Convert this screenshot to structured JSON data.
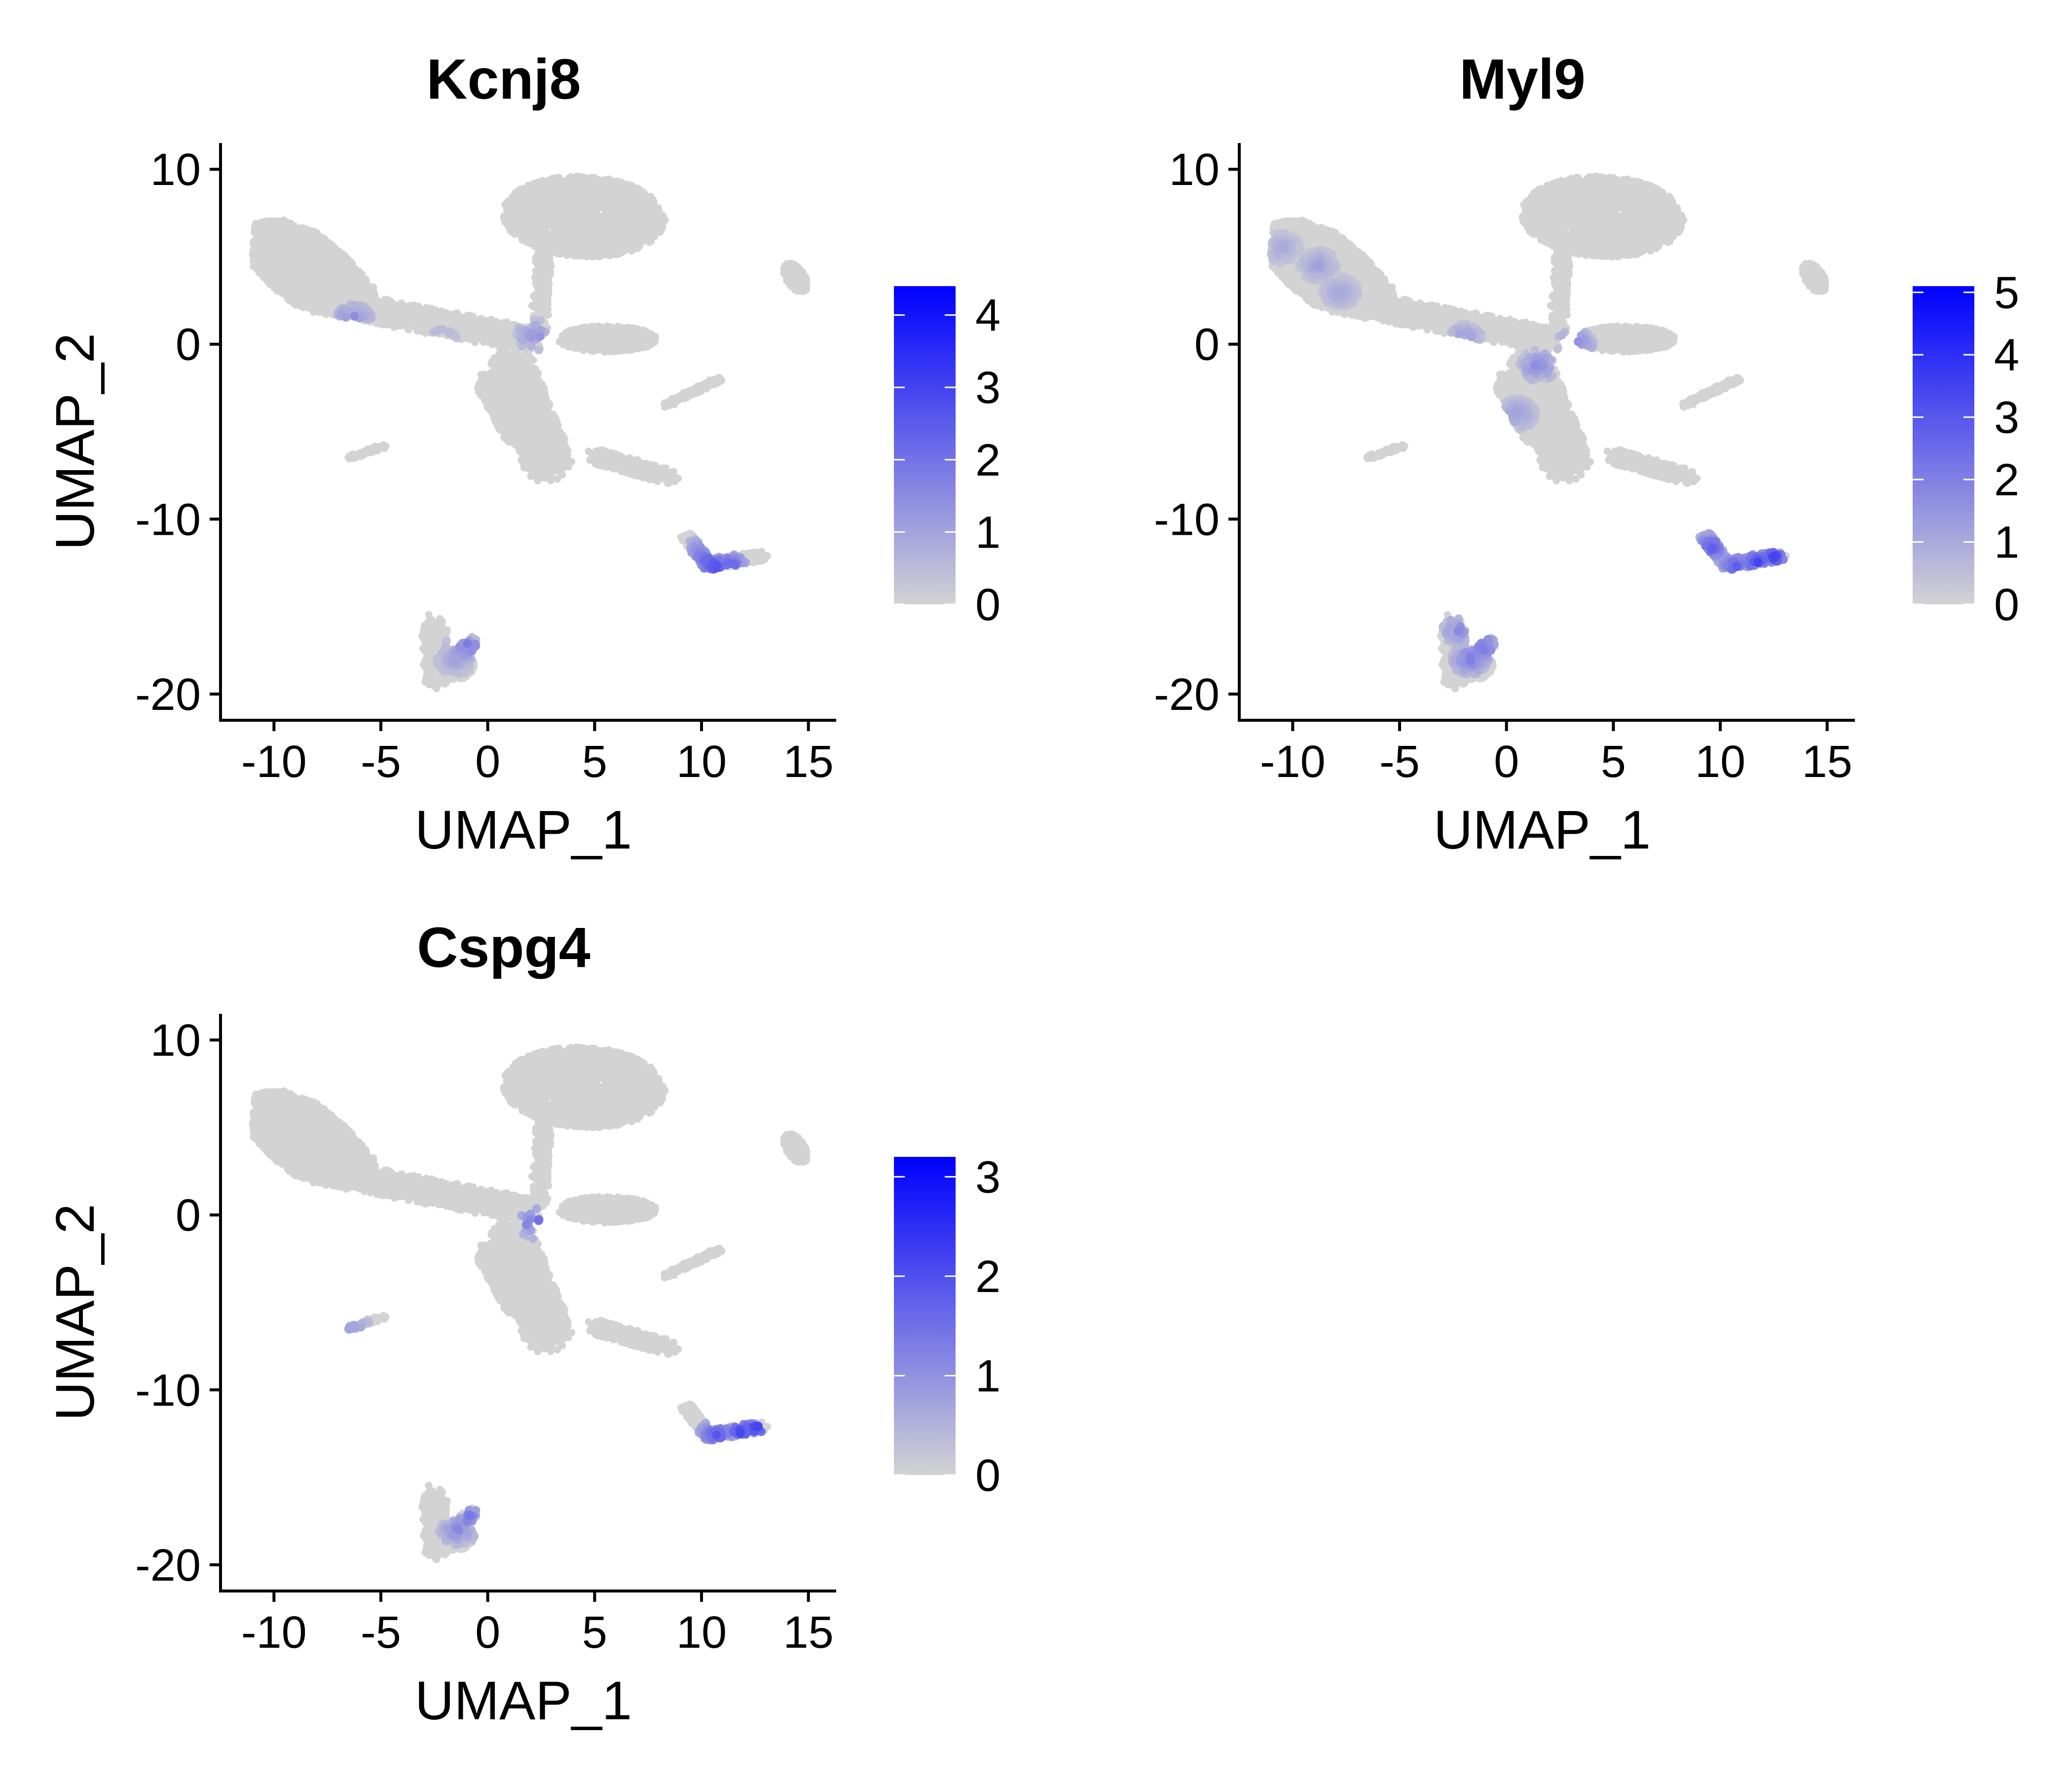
{
  "chart_data": [
    {
      "type": "scatter",
      "title": "Kcnj8",
      "xlabel": "UMAP_1",
      "ylabel": "UMAP_2",
      "xlim": [
        -12.5,
        16.3
      ],
      "ylim": [
        -21.5,
        11.5
      ],
      "xticks": [
        -10,
        -5,
        0,
        5,
        10,
        15
      ],
      "xtick_labels": [
        "-10",
        "-5",
        "0",
        "5",
        "10",
        "15"
      ],
      "yticks": [
        -20,
        -10,
        0,
        10
      ],
      "ytick_labels": [
        "-20",
        "-10",
        "0",
        "10"
      ],
      "colorbar": {
        "min": 0,
        "max": 4.4,
        "low_color": "#d3d3d3",
        "high_color": "#0000ff",
        "ticks": [
          0,
          1,
          2,
          3,
          4
        ],
        "tick_labels": [
          "0",
          "1",
          "2",
          "3",
          "4"
        ]
      },
      "expression_hotspots": [
        {
          "x": 10.6,
          "y": -12.7,
          "value": 3.0
        },
        {
          "x": 10.2,
          "y": -12.4,
          "value": 2.5
        },
        {
          "x": 11.3,
          "y": -12.9,
          "value": 3.4
        },
        {
          "x": 9.9,
          "y": -12.0,
          "value": 2.0
        },
        {
          "x": -1.2,
          "y": -17.4,
          "value": 1.6
        },
        {
          "x": -1.5,
          "y": -18.0,
          "value": 1.2
        },
        {
          "x": -0.9,
          "y": -17.2,
          "value": 2.0
        },
        {
          "x": -6.3,
          "y": 1.4,
          "value": 1.8
        },
        {
          "x": 2.2,
          "y": 0.5,
          "value": 1.6
        },
        {
          "x": -2.2,
          "y": 0.0,
          "value": 1.4
        }
      ],
      "hotspot_density": 0.35
    },
    {
      "type": "scatter",
      "title": "Myl9",
      "xlabel": "UMAP_1",
      "ylabel": "UMAP_2",
      "xlim": [
        -12.5,
        16.3
      ],
      "ylim": [
        -21.5,
        11.5
      ],
      "xticks": [
        -10,
        -5,
        0,
        5,
        10,
        15
      ],
      "xtick_labels": [
        "-10",
        "-5",
        "0",
        "5",
        "10",
        "15"
      ],
      "yticks": [
        -20,
        -10,
        0,
        10
      ],
      "ytick_labels": [
        "-20",
        "-10",
        "0",
        "10"
      ],
      "colorbar": {
        "min": 0,
        "max": 5.1,
        "low_color": "#d3d3d3",
        "high_color": "#0000ff",
        "ticks": [
          0,
          1,
          2,
          3,
          4,
          5
        ],
        "tick_labels": [
          "0",
          "1",
          "2",
          "3",
          "4",
          "5"
        ]
      },
      "expression_hotspots": [
        {
          "x": 10.8,
          "y": -12.8,
          "value": 3.4
        },
        {
          "x": 11.8,
          "y": -12.5,
          "value": 3.6
        },
        {
          "x": 12.6,
          "y": -12.2,
          "value": 3.8
        },
        {
          "x": 9.6,
          "y": -11.6,
          "value": 3.0
        },
        {
          "x": -1.1,
          "y": -17.3,
          "value": 2.6
        },
        {
          "x": -1.7,
          "y": -18.0,
          "value": 2.2
        },
        {
          "x": -2.2,
          "y": -16.3,
          "value": 2.0
        },
        {
          "x": -8.8,
          "y": 4.5,
          "value": 1.3
        },
        {
          "x": -7.8,
          "y": 3.0,
          "value": 1.2
        },
        {
          "x": -10.5,
          "y": 5.5,
          "value": 1.1
        },
        {
          "x": 3.2,
          "y": 0.0,
          "value": 2.2
        },
        {
          "x": 1.5,
          "y": -1.2,
          "value": 2.0
        },
        {
          "x": -2.0,
          "y": 0.3,
          "value": 1.6
        },
        {
          "x": 0.5,
          "y": -4.0,
          "value": 1.4
        }
      ],
      "hotspot_density": 0.6
    },
    {
      "type": "scatter",
      "title": "Cspg4",
      "xlabel": "UMAP_1",
      "ylabel": "UMAP_2",
      "xlim": [
        -12.5,
        16.3
      ],
      "ylim": [
        -21.5,
        11.5
      ],
      "xticks": [
        -10,
        -5,
        0,
        5,
        10,
        15
      ],
      "xtick_labels": [
        "-10",
        "-5",
        "0",
        "5",
        "10",
        "15"
      ],
      "yticks": [
        -20,
        -10,
        0,
        10
      ],
      "ytick_labels": [
        "-20",
        "-10",
        "0",
        "10"
      ],
      "colorbar": {
        "min": 0,
        "max": 3.2,
        "low_color": "#d3d3d3",
        "high_color": "#0000ff",
        "ticks": [
          0,
          1,
          2,
          3
        ],
        "tick_labels": [
          "0",
          "1",
          "2",
          "3"
        ]
      },
      "expression_hotspots": [
        {
          "x": 10.7,
          "y": -12.6,
          "value": 2.0
        },
        {
          "x": 11.8,
          "y": -12.4,
          "value": 2.3
        },
        {
          "x": 12.6,
          "y": -12.1,
          "value": 2.6
        },
        {
          "x": -1.0,
          "y": -17.2,
          "value": 1.6
        },
        {
          "x": -1.4,
          "y": -18.0,
          "value": 1.2
        },
        {
          "x": -6.2,
          "y": -6.6,
          "value": 1.0
        },
        {
          "x": 2.3,
          "y": -0.5,
          "value": 2.0
        }
      ],
      "hotspot_density": 0.35
    }
  ]
}
